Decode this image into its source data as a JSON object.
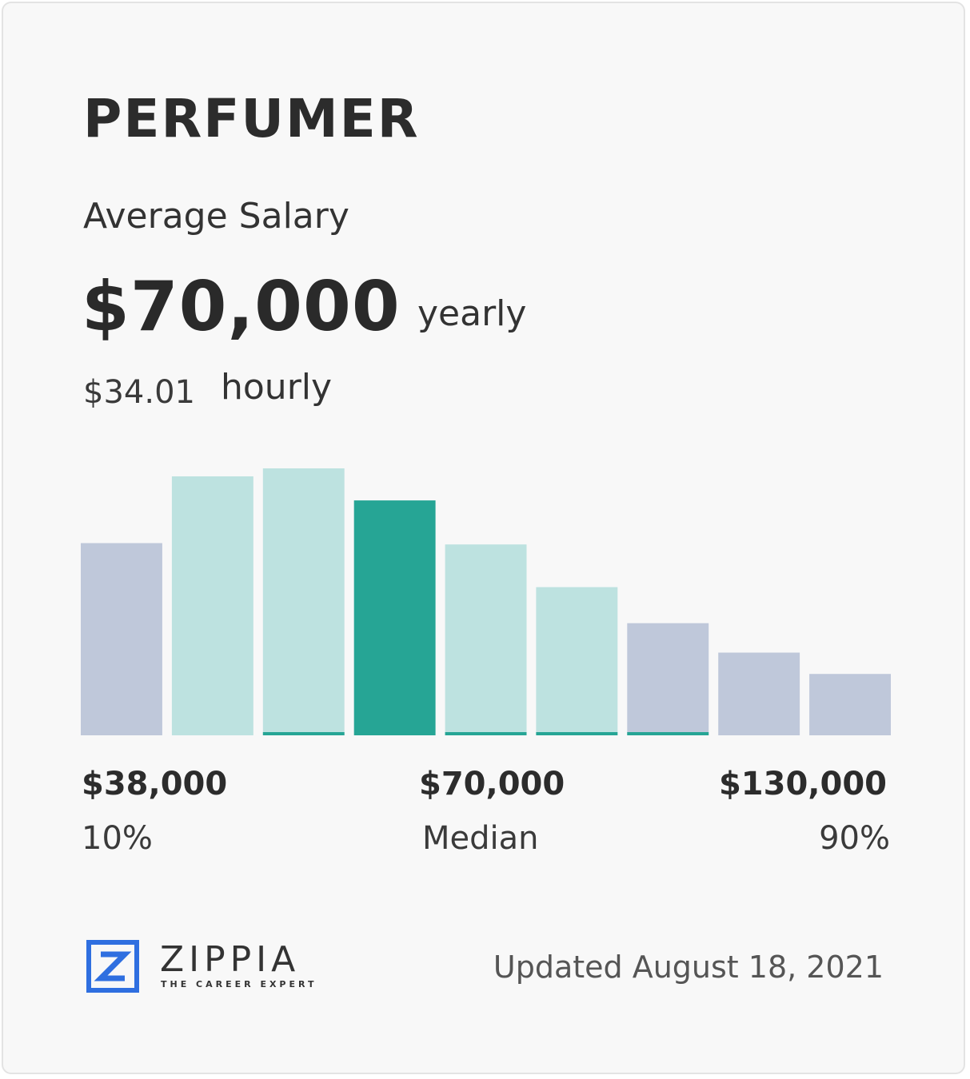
{
  "card": {
    "title": "PERFUMER",
    "subtitle": "Average Salary",
    "salary": "$70,000",
    "salary_period": "yearly",
    "hourly_value": "$34.01",
    "hourly_label": "hourly"
  },
  "chart_data": {
    "type": "bar",
    "title": "",
    "xlabel": "",
    "ylabel": "",
    "ylim": [
      0,
      1
    ],
    "grid": false,
    "legend": "none",
    "values": [
      0.72,
      0.97,
      1.0,
      0.88,
      0.715,
      0.555,
      0.42,
      0.31,
      0.23
    ],
    "bar_colors": [
      "#bfc8da",
      "#bde2e0",
      "#bde2e0",
      "#26a595",
      "#bde2e0",
      "#bde2e0",
      "#bfc8da",
      "#bfc8da",
      "#bfc8da"
    ],
    "median_index": 3,
    "tick_labels": [
      {
        "value": "$38,000",
        "caption": "10%"
      },
      {
        "value": "$70,000",
        "caption": "Median"
      },
      {
        "value": "$130,000",
        "caption": "90%"
      }
    ]
  },
  "colors": {
    "median_bar": "#26a595",
    "mid_bar": "#bde2e0",
    "outer_bar": "#bfc8da",
    "logo_blue": "#2f6fe0"
  },
  "footer": {
    "brand": "ZIPPIA",
    "tagline": "THE CAREER EXPERT",
    "updated": "Updated August 18, 2021",
    "logo_icon": "zippia-logo-icon"
  }
}
